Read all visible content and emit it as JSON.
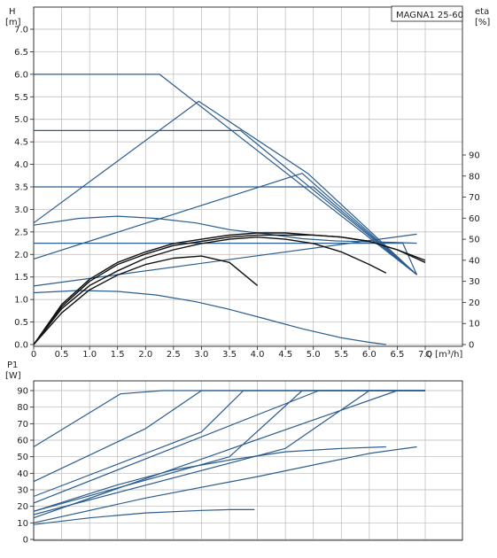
{
  "chart_data": [
    {
      "type": "line",
      "title": "MAGNA1 25-60",
      "ylabel": "H",
      "ylabel_unit": "[m]",
      "y2label": "eta",
      "y2label_unit": "[%]",
      "xlabel": "Q [m³/h]",
      "xlim": [
        0,
        7.0
      ],
      "xticks": [
        "0",
        "0.5",
        "1.0",
        "1.5",
        "2.0",
        "2.5",
        "3.0",
        "3.5",
        "4.0",
        "4.5",
        "5.0",
        "5.5",
        "6.0",
        "6.5",
        "7.0"
      ],
      "ylim": [
        0,
        7.5
      ],
      "yticks": [
        "0.0",
        "0.5",
        "1.0",
        "1.5",
        "2.0",
        "2.5",
        "3.0",
        "3.5",
        "4.0",
        "4.5",
        "5.0",
        "5.5",
        "6.0",
        "6.5",
        "7.0"
      ],
      "y2lim": [
        0,
        100
      ],
      "y2ticks": [
        "0",
        "10",
        "20",
        "30",
        "40",
        "50",
        "60",
        "70",
        "80",
        "90"
      ],
      "grid": true,
      "head_curves": [
        {
          "x": [
            0,
            2.25,
            6.85
          ],
          "y": [
            6.0,
            6.0,
            1.55
          ]
        },
        {
          "x": [
            0,
            3.7,
            6.85
          ],
          "y": [
            4.75,
            4.75,
            1.55
          ]
        },
        {
          "x": [
            0,
            5.0,
            6.85
          ],
          "y": [
            3.5,
            3.5,
            1.55
          ]
        },
        {
          "x": [
            0,
            6.6,
            6.85
          ],
          "y": [
            2.25,
            2.25,
            1.55
          ]
        },
        {
          "x": [
            0,
            2.95,
            4.9,
            6.85
          ],
          "y": [
            2.7,
            5.4,
            3.8,
            1.55
          ]
        },
        {
          "x": [
            0,
            4.8,
            6.85
          ],
          "y": [
            1.9,
            3.8,
            1.55
          ]
        },
        {
          "x": [
            0,
            6.85
          ],
          "y": [
            1.3,
            2.45
          ]
        },
        {
          "x": [
            0,
            0.8,
            1.5,
            2.2,
            2.9,
            3.5,
            4.2,
            4.8,
            5.4,
            6.0,
            6.4,
            6.85
          ],
          "y": [
            2.65,
            2.8,
            2.85,
            2.8,
            2.7,
            2.55,
            2.45,
            2.35,
            2.3,
            2.28,
            2.27,
            2.25
          ]
        },
        {
          "x": [
            0,
            0.8,
            1.5,
            2.2,
            2.9,
            3.5,
            4.2,
            4.8,
            5.5,
            6.0,
            6.3
          ],
          "y": [
            1.15,
            1.2,
            1.18,
            1.1,
            0.95,
            0.78,
            0.55,
            0.35,
            0.15,
            0.05,
            0.0
          ]
        }
      ],
      "eta_curves": [
        {
          "x": [
            0,
            0.5,
            1.0,
            1.5,
            2.0,
            2.5,
            3.0,
            3.5,
            4.0,
            4.5,
            5.0,
            5.5,
            6.0,
            6.5,
            7.0
          ],
          "y": [
            0,
            18,
            30,
            38,
            43,
            47,
            49,
            51,
            52,
            52,
            52,
            51,
            49,
            45,
            40
          ]
        },
        {
          "x": [
            0,
            0.5,
            1.0,
            1.5,
            2.0,
            2.5,
            3.0,
            3.5,
            4.0
          ],
          "y": [
            0,
            15,
            26,
            33,
            38,
            41,
            42,
            39,
            28
          ]
        },
        {
          "x": [
            0,
            0.5,
            1.0,
            1.5,
            2.0,
            2.5,
            3.0,
            3.5,
            4.0,
            4.5,
            5.0,
            5.5,
            6.0,
            6.3
          ],
          "y": [
            0,
            17,
            28,
            35,
            41,
            45,
            48,
            50,
            51,
            50,
            48,
            44,
            38,
            34
          ]
        },
        {
          "x": [
            0,
            0.5,
            1.0,
            1.5,
            2.0,
            2.5,
            3.0,
            3.5,
            4.0,
            4.5,
            5.0,
            5.5,
            6.0,
            6.5,
            7.0
          ],
          "y": [
            0,
            19,
            31,
            39,
            44,
            48,
            50,
            52,
            53,
            53,
            52,
            51,
            49,
            45,
            39
          ]
        }
      ]
    },
    {
      "type": "line",
      "ylabel": "P1",
      "ylabel_unit": "[W]",
      "xlim": [
        0,
        7.0
      ],
      "ylim": [
        0,
        100
      ],
      "yticks": [
        "0",
        "10",
        "20",
        "30",
        "40",
        "50",
        "60",
        "70",
        "80",
        "90"
      ],
      "grid": true,
      "power_curves": [
        {
          "x": [
            0,
            1.55,
            2.3,
            7.0
          ],
          "y": [
            56,
            88,
            90,
            90
          ]
        },
        {
          "x": [
            0,
            2.0,
            3.0,
            7.0
          ],
          "y": [
            35,
            67,
            90,
            90
          ]
        },
        {
          "x": [
            0,
            3.0,
            3.75,
            7.0
          ],
          "y": [
            26,
            65,
            90,
            90
          ]
        },
        {
          "x": [
            0,
            3.5,
            4.8,
            7.0
          ],
          "y": [
            17,
            50,
            90,
            90
          ]
        },
        {
          "x": [
            0,
            5.1,
            7.0
          ],
          "y": [
            22,
            90,
            90
          ]
        },
        {
          "x": [
            0,
            4.5,
            6.0,
            7.0
          ],
          "y": [
            15,
            55,
            90,
            90
          ]
        },
        {
          "x": [
            0,
            6.5,
            7.0
          ],
          "y": [
            13,
            90,
            90
          ]
        },
        {
          "x": [
            0,
            1.5,
            2.5,
            3.5,
            4.5,
            5.5,
            6.3
          ],
          "y": [
            17,
            33,
            42,
            48,
            53,
            55,
            56
          ]
        },
        {
          "x": [
            0,
            2.0,
            4.0,
            6.0,
            6.85
          ],
          "y": [
            10,
            25,
            38,
            52,
            56
          ]
        },
        {
          "x": [
            0,
            1.0,
            2.0,
            3.0,
            3.5,
            3.95
          ],
          "y": [
            9,
            13,
            16,
            17.5,
            18,
            18
          ]
        }
      ]
    }
  ]
}
